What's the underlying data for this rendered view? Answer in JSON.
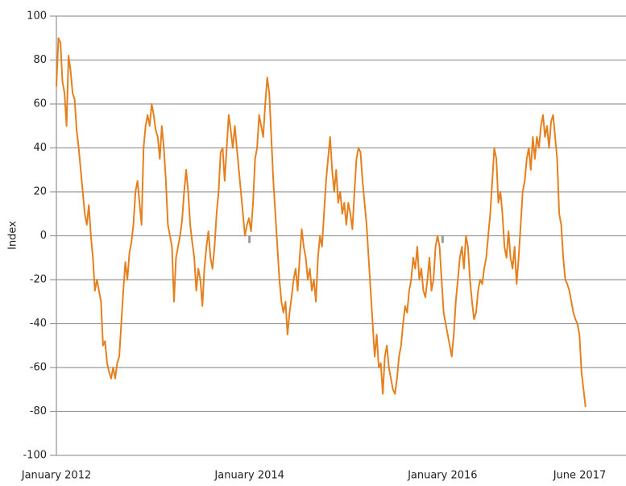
{
  "chart_data": {
    "type": "line",
    "y_label": "Index",
    "xlim": [
      2012,
      2017.9
    ],
    "xticks": [
      {
        "value": 2012,
        "label": "January 2012"
      },
      {
        "value": 2014,
        "label": "January 2014"
      },
      {
        "value": 2016,
        "label": "January 2016"
      },
      {
        "value": 2017.42,
        "label": "June 2017"
      }
    ],
    "ylim": [
      -100,
      100
    ],
    "yticks": [
      -100,
      -80,
      -60,
      -40,
      -20,
      0,
      20,
      40,
      60,
      80,
      100
    ],
    "grid": true,
    "color": "#e5801f",
    "x": [
      2012,
      2012.021,
      2012.042,
      2012.063,
      2012.084,
      2012.105,
      2012.126,
      2012.147,
      2012.168,
      2012.189,
      2012.21,
      2012.231,
      2012.252,
      2012.273,
      2012.294,
      2012.315,
      2012.336,
      2012.357,
      2012.378,
      2012.399,
      2012.42,
      2012.441,
      2012.462,
      2012.483,
      2012.504,
      2012.525,
      2012.546,
      2012.567,
      2012.588,
      2012.609,
      2012.63,
      2012.651,
      2012.672,
      2012.693,
      2012.714,
      2012.735,
      2012.756,
      2012.777,
      2012.798,
      2012.819,
      2012.84,
      2012.861,
      2012.882,
      2012.903,
      2012.924,
      2012.945,
      2012.966,
      2012.987,
      2013.008,
      2013.029,
      2013.05,
      2013.071,
      2013.092,
      2013.113,
      2013.134,
      2013.155,
      2013.176,
      2013.197,
      2013.218,
      2013.239,
      2013.26,
      2013.281,
      2013.302,
      2013.323,
      2013.344,
      2013.365,
      2013.386,
      2013.407,
      2013.428,
      2013.449,
      2013.47,
      2013.491,
      2013.512,
      2013.533,
      2013.554,
      2013.575,
      2013.596,
      2013.617,
      2013.638,
      2013.659,
      2013.68,
      2013.701,
      2013.722,
      2013.743,
      2013.764,
      2013.785,
      2013.806,
      2013.827,
      2013.848,
      2013.869,
      2013.89,
      2013.911,
      2013.932,
      2013.953,
      2013.974,
      2013.995,
      2014.016,
      2014.037,
      2014.058,
      2014.079,
      2014.1,
      2014.121,
      2014.142,
      2014.163,
      2014.184,
      2014.205,
      2014.226,
      2014.247,
      2014.268,
      2014.289,
      2014.31,
      2014.331,
      2014.352,
      2014.373,
      2014.394,
      2014.415,
      2014.436,
      2014.457,
      2014.478,
      2014.499,
      2014.52,
      2014.541,
      2014.562,
      2014.583,
      2014.604,
      2014.625,
      2014.646,
      2014.667,
      2014.688,
      2014.709,
      2014.73,
      2014.751,
      2014.772,
      2014.793,
      2014.814,
      2014.835,
      2014.856,
      2014.877,
      2014.898,
      2014.919,
      2014.94,
      2014.961,
      2014.982,
      2015.003,
      2015.024,
      2015.045,
      2015.066,
      2015.087,
      2015.108,
      2015.129,
      2015.15,
      2015.171,
      2015.192,
      2015.213,
      2015.234,
      2015.255,
      2015.276,
      2015.297,
      2015.318,
      2015.339,
      2015.36,
      2015.381,
      2015.402,
      2015.423,
      2015.444,
      2015.465,
      2015.486,
      2015.507,
      2015.528,
      2015.549,
      2015.57,
      2015.591,
      2015.612,
      2015.633,
      2015.654,
      2015.675,
      2015.696,
      2015.717,
      2015.738,
      2015.759,
      2015.78,
      2015.801,
      2015.822,
      2015.843,
      2015.864,
      2015.885,
      2015.906,
      2015.927,
      2015.948,
      2015.969,
      2015.99,
      2016.011,
      2016.032,
      2016.053,
      2016.074,
      2016.095,
      2016.116,
      2016.137,
      2016.158,
      2016.179,
      2016.2,
      2016.221,
      2016.242,
      2016.263,
      2016.284,
      2016.305,
      2016.326,
      2016.347,
      2016.368,
      2016.389,
      2016.41,
      2016.431,
      2016.452,
      2016.473,
      2016.494,
      2016.515,
      2016.536,
      2016.557,
      2016.578,
      2016.599,
      2016.62,
      2016.641,
      2016.662,
      2016.683,
      2016.704,
      2016.725,
      2016.746,
      2016.767,
      2016.788,
      2016.809,
      2016.83,
      2016.851,
      2016.872,
      2016.893,
      2016.914,
      2016.935,
      2016.956,
      2016.977,
      2016.998,
      2017.019,
      2017.04,
      2017.061,
      2017.082,
      2017.103,
      2017.124,
      2017.145,
      2017.166,
      2017.187,
      2017.208,
      2017.229,
      2017.25,
      2017.271,
      2017.292,
      2017.313,
      2017.334,
      2017.355,
      2017.376,
      2017.397,
      2017.418,
      2017.439,
      2017.46,
      2017.481
    ],
    "values": [
      68,
      90,
      88,
      70,
      65,
      50,
      82,
      75,
      65,
      62,
      48,
      40,
      30,
      20,
      10,
      5,
      14,
      0,
      -10,
      -25,
      -20,
      -25,
      -30,
      -50,
      -48,
      -58,
      -62,
      -65,
      -60,
      -65,
      -58,
      -55,
      -40,
      -25,
      -12,
      -20,
      -8,
      -3,
      5,
      20,
      25,
      15,
      5,
      40,
      50,
      55,
      50,
      60,
      55,
      48,
      45,
      35,
      50,
      40,
      25,
      5,
      0,
      -5,
      -30,
      -10,
      -5,
      0,
      7,
      20,
      30,
      20,
      5,
      -3,
      -10,
      -25,
      -15,
      -20,
      -32,
      -15,
      -5,
      2,
      -10,
      -15,
      -5,
      10,
      20,
      38,
      40,
      25,
      40,
      55,
      48,
      40,
      50,
      40,
      30,
      20,
      10,
      0,
      5,
      8,
      2,
      15,
      35,
      40,
      55,
      50,
      45,
      60,
      72,
      65,
      45,
      25,
      10,
      -5,
      -20,
      -30,
      -35,
      -30,
      -45,
      -35,
      -28,
      -20,
      -15,
      -25,
      -10,
      3,
      -5,
      -10,
      -20,
      -15,
      -25,
      -20,
      -30,
      -10,
      0,
      -5,
      10,
      25,
      35,
      45,
      30,
      20,
      30,
      15,
      20,
      10,
      15,
      5,
      15,
      10,
      3,
      20,
      35,
      40,
      38,
      25,
      15,
      5,
      -10,
      -25,
      -40,
      -55,
      -45,
      -60,
      -58,
      -72,
      -55,
      -50,
      -60,
      -65,
      -70,
      -72,
      -65,
      -55,
      -50,
      -40,
      -32,
      -35,
      -25,
      -20,
      -10,
      -15,
      -5,
      -20,
      -15,
      -25,
      -28,
      -20,
      -10,
      -25,
      -20,
      -5,
      0,
      -5,
      -20,
      -35,
      -40,
      -45,
      -50,
      -55,
      -45,
      -30,
      -20,
      -10,
      -5,
      -15,
      0,
      -5,
      -20,
      -30,
      -38,
      -35,
      -25,
      -20,
      -22,
      -15,
      -10,
      0,
      10,
      25,
      40,
      35,
      15,
      20,
      10,
      -5,
      -10,
      2,
      -10,
      -15,
      -5,
      -22,
      -10,
      5,
      20,
      25,
      35,
      40,
      30,
      45,
      35,
      45,
      40,
      50,
      55,
      45,
      50,
      40,
      52,
      55,
      45,
      35,
      10,
      5,
      -10,
      -20,
      -22,
      -25,
      -30,
      -35,
      -38,
      -40,
      -45,
      -62,
      -70,
      -78
    ]
  }
}
